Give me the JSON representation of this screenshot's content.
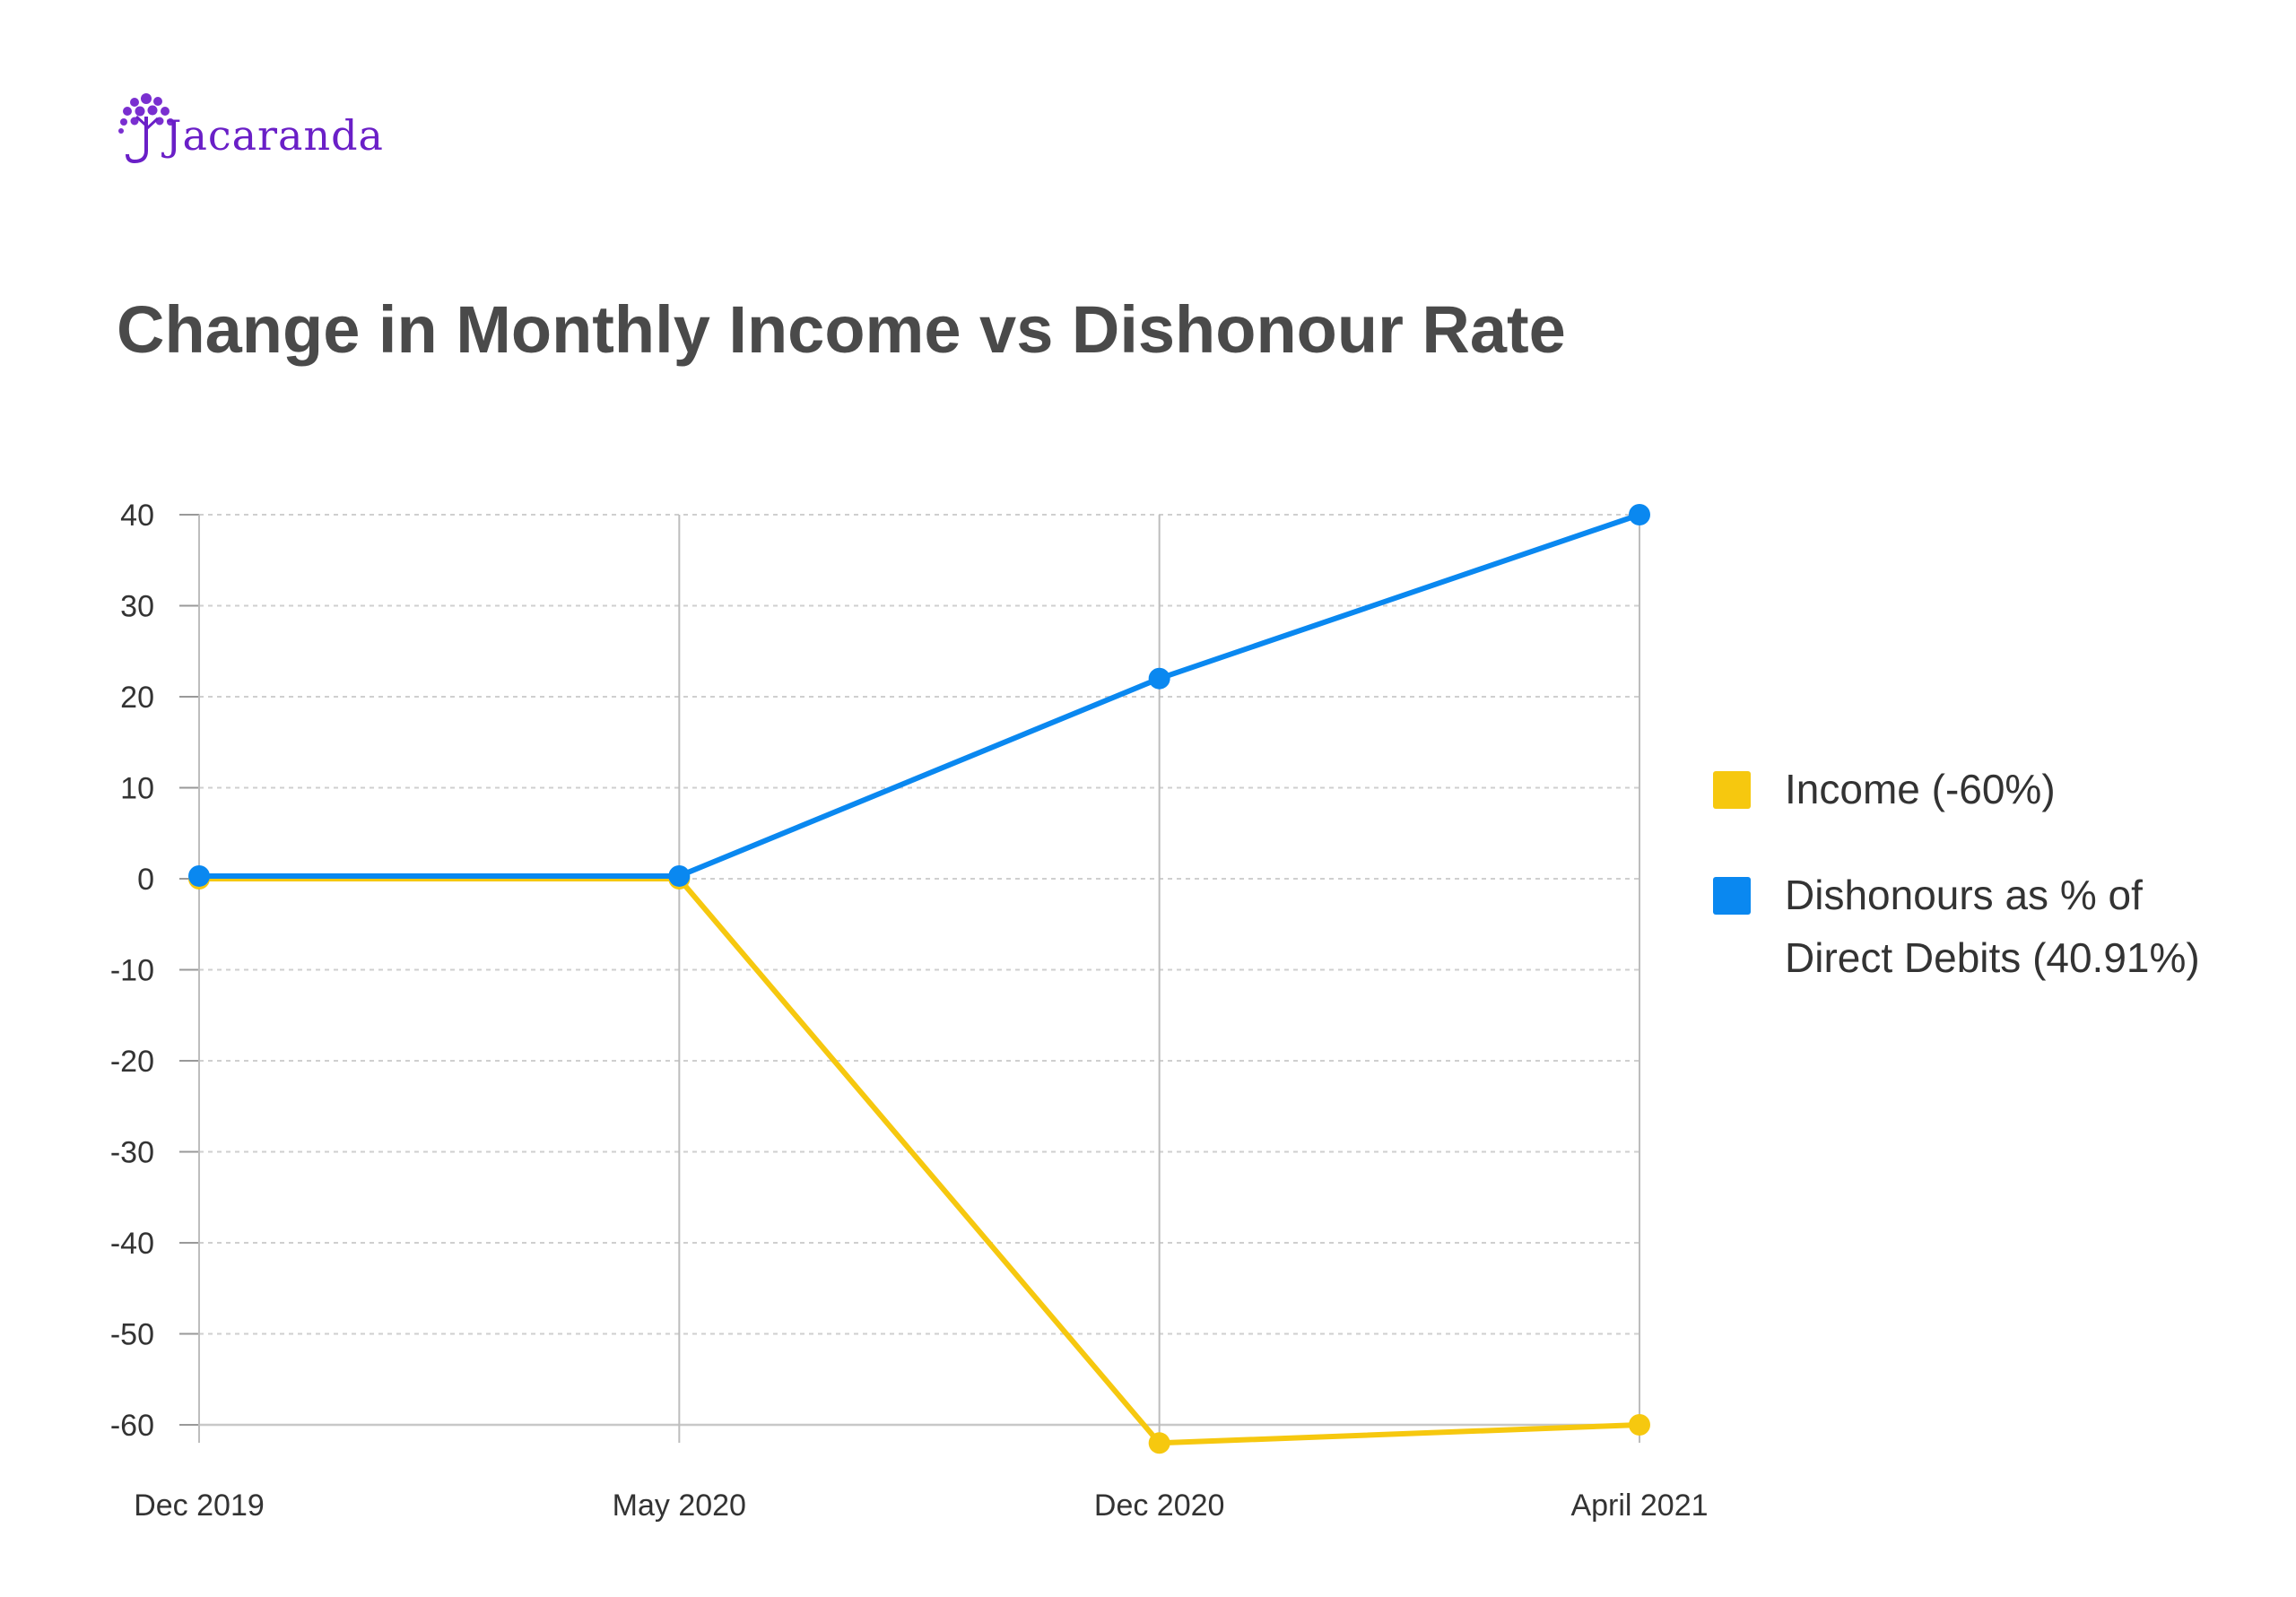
{
  "brand": {
    "name": "Jacaranda",
    "color": "#6a1fc7"
  },
  "chart_data": {
    "type": "line",
    "title": "Change in Monthly Income vs Dishonour Rate",
    "categories": [
      "Dec 2019",
      "May 2020",
      "Dec 2020",
      "April 2021"
    ],
    "ylim": [
      -60,
      40
    ],
    "yticks": [
      40,
      30,
      20,
      10,
      0,
      -10,
      -20,
      -30,
      -40,
      -50,
      -60
    ],
    "grid": true,
    "legend_position": "right",
    "series": [
      {
        "name": "Income (-60%)",
        "color": "#f6c80f",
        "values": [
          0,
          0,
          -62,
          -60
        ]
      },
      {
        "name": "Dishonours as % of Direct Debits (40.91%)",
        "legend_lines": [
          "Dishonours as % of",
          "Direct Debits (40.91%)"
        ],
        "color": "#0a88f0",
        "values": [
          0.3,
          0.3,
          22,
          40
        ]
      }
    ]
  }
}
